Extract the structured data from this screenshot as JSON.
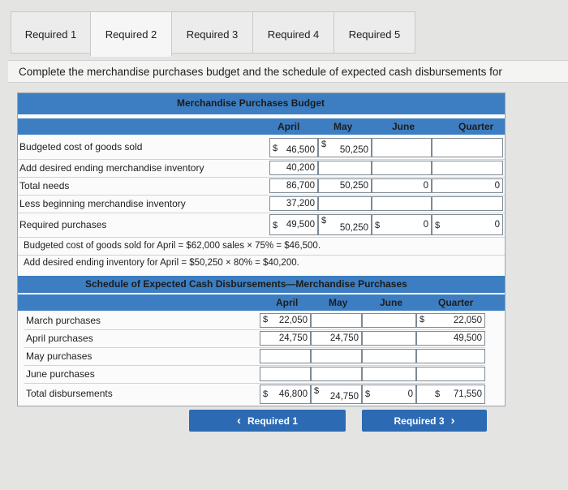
{
  "tabs": [
    "Required 1",
    "Required 2",
    "Required 3",
    "Required 4",
    "Required 5"
  ],
  "instruction": "Complete the merchandise purchases budget and the schedule of expected cash disbursements for",
  "budget": {
    "title": "Merchandise Purchases Budget",
    "columns": [
      "April",
      "May",
      "June",
      "Quarter"
    ],
    "rows": [
      {
        "label": "Budgeted cost of goods sold",
        "cells": [
          {
            "d": "$",
            "v": "46,500"
          },
          {
            "d": "$",
            "v": "50,250"
          },
          {
            "d": "",
            "v": ""
          },
          {
            "d": "",
            "v": ""
          }
        ]
      },
      {
        "label": "Add desired ending merchandise inventory",
        "cells": [
          {
            "d": "",
            "v": "40,200"
          },
          {
            "d": "",
            "v": ""
          },
          {
            "d": "",
            "v": ""
          },
          {
            "d": "",
            "v": ""
          }
        ]
      },
      {
        "label": "Total needs",
        "cells": [
          {
            "d": "",
            "v": "86,700"
          },
          {
            "d": "",
            "v": "50,250"
          },
          {
            "d": "",
            "v": "0"
          },
          {
            "d": "",
            "v": "0"
          }
        ]
      },
      {
        "label": "Less beginning merchandise inventory",
        "cells": [
          {
            "d": "",
            "v": "37,200"
          },
          {
            "d": "",
            "v": ""
          },
          {
            "d": "",
            "v": ""
          },
          {
            "d": "",
            "v": ""
          }
        ]
      },
      {
        "label": "Required purchases",
        "cells": [
          {
            "d": "$",
            "v": "49,500"
          },
          {
            "d": "$",
            "v": "50,250"
          },
          {
            "d": "$",
            "v": "0"
          },
          {
            "d": "$",
            "v": "0"
          }
        ]
      }
    ],
    "notes": [
      "Budgeted cost of goods sold for April = $62,000 sales × 75% = $46,500.",
      "Add desired ending inventory for April = $50,250 × 80% = $40,200."
    ]
  },
  "schedule": {
    "title": "Schedule of Expected Cash Disbursements—Merchandise Purchases",
    "columns": [
      "April",
      "May",
      "June",
      "Quarter"
    ],
    "rows": [
      {
        "label": "March purchases",
        "cells": [
          {
            "d": "$",
            "v": "22,050"
          },
          {
            "d": "",
            "v": ""
          },
          {
            "d": "",
            "v": ""
          },
          {
            "d": "$",
            "v": "22,050"
          }
        ]
      },
      {
        "label": "April purchases",
        "cells": [
          {
            "d": "",
            "v": "24,750"
          },
          {
            "d": "",
            "v": "24,750"
          },
          {
            "d": "",
            "v": ""
          },
          {
            "d": "",
            "v": "49,500"
          }
        ]
      },
      {
        "label": "May purchases",
        "cells": [
          {
            "d": "",
            "v": ""
          },
          {
            "d": "",
            "v": ""
          },
          {
            "d": "",
            "v": ""
          },
          {
            "d": "",
            "v": ""
          }
        ]
      },
      {
        "label": "June purchases",
        "cells": [
          {
            "d": "",
            "v": ""
          },
          {
            "d": "",
            "v": ""
          },
          {
            "d": "",
            "v": ""
          },
          {
            "d": "",
            "v": ""
          }
        ]
      },
      {
        "label": "Total disbursements",
        "cells": [
          {
            "d": "$",
            "v": "46,800"
          },
          {
            "d": "$",
            "v": "24,750"
          },
          {
            "d": "$",
            "v": "0"
          },
          {
            "d": "$",
            "v": "71,550"
          }
        ]
      }
    ]
  },
  "nav": {
    "prev": "Required 1",
    "next": "Required 3",
    "prev_icon": "‹",
    "next_icon": "›"
  }
}
